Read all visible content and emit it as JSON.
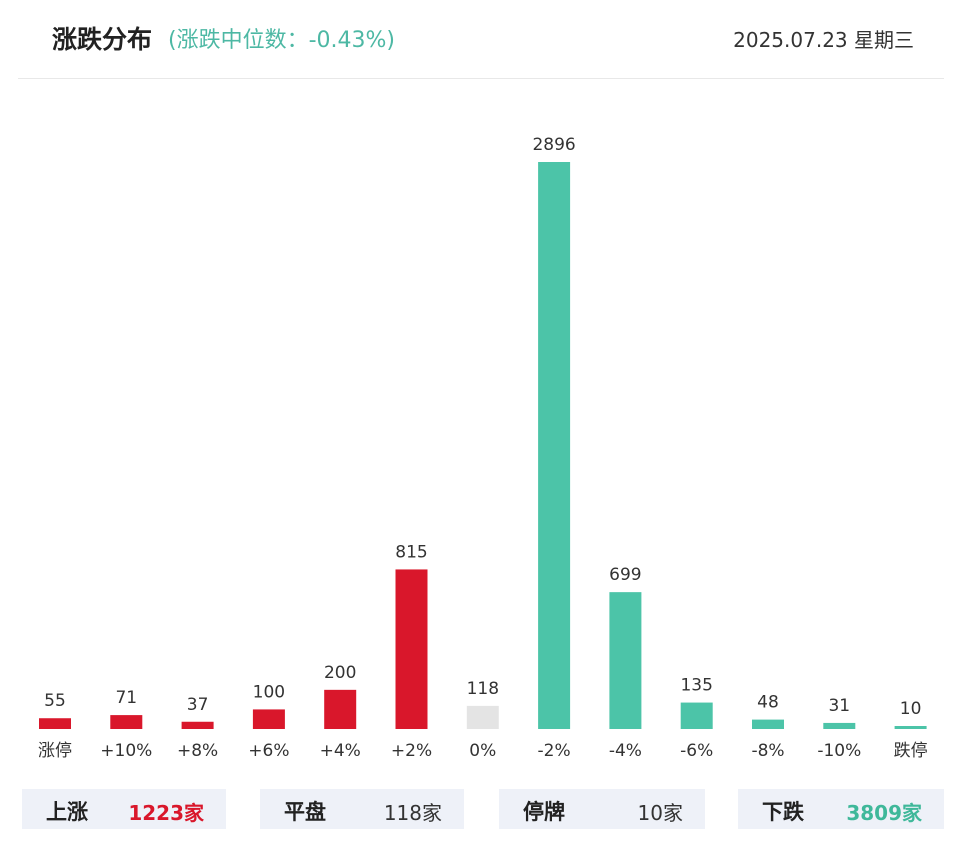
{
  "header": {
    "title": "涨跌分布",
    "subtitle": "(涨跌中位数：-0.43%)",
    "date": "2025.07.23 星期三"
  },
  "chart_data": {
    "type": "bar",
    "categories": [
      "涨停",
      "+10%",
      "+8%",
      "+6%",
      "+4%",
      "+2%",
      "0%",
      "-2%",
      "-4%",
      "-6%",
      "-8%",
      "-10%",
      "跌停"
    ],
    "values": [
      55,
      71,
      37,
      100,
      200,
      815,
      118,
      2896,
      699,
      135,
      48,
      31,
      10
    ],
    "bar_colors": [
      "#d9172b",
      "#d9172b",
      "#d9172b",
      "#d9172b",
      "#d9172b",
      "#d9172b",
      "#e4e4e4",
      "#4cc4a8",
      "#4cc4a8",
      "#4cc4a8",
      "#4cc4a8",
      "#4cc4a8",
      "#4cc4a8"
    ],
    "data_labels": true,
    "grid": false,
    "legend": "none"
  },
  "summary": [
    {
      "label": "上涨",
      "value": "1223家",
      "color": "up"
    },
    {
      "label": "平盘",
      "value": "118家",
      "color": "flat"
    },
    {
      "label": "停牌",
      "value": "10家",
      "color": "flat"
    },
    {
      "label": "下跌",
      "value": "3809家",
      "color": "down"
    }
  ]
}
